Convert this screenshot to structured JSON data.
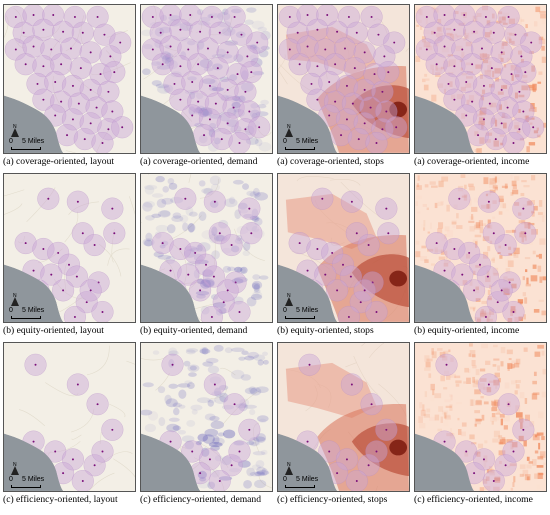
{
  "panels": [
    {
      "caption": "(a) coverage-oriented, layout",
      "row": 0,
      "col": 0,
      "variant": "layout",
      "stations": "coverage"
    },
    {
      "caption": "(a) coverage-oriented, demand",
      "row": 0,
      "col": 1,
      "variant": "demand",
      "stations": "coverage"
    },
    {
      "caption": "(a) coverage-oriented, stops",
      "row": 0,
      "col": 2,
      "variant": "stops",
      "stations": "coverage"
    },
    {
      "caption": "(a) coverage-oriented, income",
      "row": 0,
      "col": 3,
      "variant": "income",
      "stations": "coverage"
    },
    {
      "caption": "(b) equity-oriented, layout",
      "row": 1,
      "col": 0,
      "variant": "layout",
      "stations": "equity"
    },
    {
      "caption": "(b) equity-oriented, demand",
      "row": 1,
      "col": 1,
      "variant": "demand",
      "stations": "equity"
    },
    {
      "caption": "(b) equity-oriented, stops",
      "row": 1,
      "col": 2,
      "variant": "stops",
      "stations": "equity"
    },
    {
      "caption": "(b) equity-oriented, income",
      "row": 1,
      "col": 3,
      "variant": "income",
      "stations": "equity"
    },
    {
      "caption": "(c) efficiency-oriented, layout",
      "row": 2,
      "col": 0,
      "variant": "layout",
      "stations": "efficiency"
    },
    {
      "caption": "(c) efficiency-oriented, demand",
      "row": 2,
      "col": 1,
      "variant": "demand",
      "stations": "efficiency"
    },
    {
      "caption": "(c) efficiency-oriented, stops",
      "row": 2,
      "col": 2,
      "variant": "stops",
      "stations": "efficiency"
    },
    {
      "caption": "(c) efficiency-oriented, income",
      "row": 2,
      "col": 3,
      "variant": "income",
      "stations": "efficiency"
    }
  ],
  "scale_bar": {
    "zero": "0",
    "distance": "5 Miles",
    "north": "N"
  },
  "colors": {
    "land": "#f3efe6",
    "water": "#8f969c",
    "station_buffer": "#c9a6d6",
    "station_dot": "#7a0f7a",
    "demand": "#5b57b8",
    "stops_low": "#f6c6b8",
    "stops_high": "#7a1a0e",
    "income": "#f08a5d"
  }
}
